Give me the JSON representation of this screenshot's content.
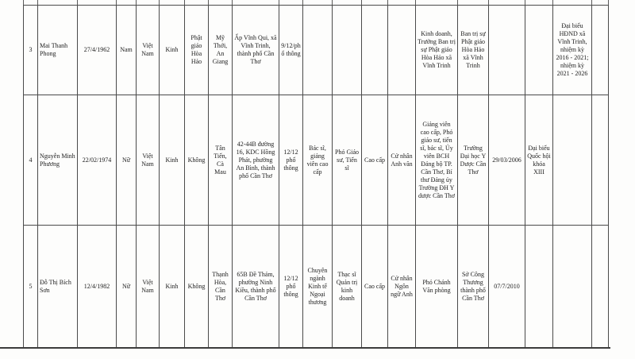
{
  "document": {
    "kind": "scanned candidate biography table",
    "table": {
      "rows": [
        {
          "cells": [
            "3",
            "Mai Thanh Phong",
            "27/4/1962",
            "Nam",
            "Việt Nam",
            "Kinh",
            "Phật giáo Hòa Hảo",
            "Mỹ Thới, An Giang",
            "Ấp Vĩnh Qui, xã Vĩnh Trinh, thành phố Cần Thơ",
            "9/12/phổ thông",
            "",
            "",
            "",
            "",
            "Kinh doanh, Trưởng Ban trị sự Phật giáo Hòa Hảo xã Vĩnh Trinh",
            "Ban trị sự Phật giáo Hòa Hảo xã Vĩnh Trinh",
            "",
            "",
            "Đại biểu HĐND xã Vĩnh Trinh, nhiệm kỳ 2016 - 2021; nhiệm kỳ 2021 - 2026",
            ""
          ]
        },
        {
          "cells": [
            "4",
            "Nguyễn Minh Phương",
            "22/02/1974",
            "Nữ",
            "Việt Nam",
            "Kinh",
            "Không",
            "Tân Tiến, Cà Mau",
            "42-44B đường 16, KDC Hồng Phát, phường An Bình, thành phố Cần Thơ",
            "12/12 phổ thông",
            "Bác sĩ, giảng viên cao cấp",
            "Phó Giáo sư, Tiến sĩ",
            "Cao cấp",
            "Cử nhân Anh văn",
            "Giảng viên cao cấp, Phó giáo sư, tiến sĩ, bác sĩ, Ủy viên BCH Đảng bộ TP. Cần Thơ, Bí thư Đảng ủy Trường ĐH Y dược Cần Thơ",
            "Trường Đại học Y Dược Cần Thơ",
            "29/03/2006",
            "Đại biểu Quốc hội khóa XIII",
            "",
            ""
          ]
        },
        {
          "cells": [
            "5",
            "Đỗ Thị Bích Sơn",
            "12/4/1982",
            "Nữ",
            "Việt Nam",
            "Kinh",
            "Không",
            "Thạnh Hòa, Cần Thơ",
            "65B Đề Thám, phường Ninh Kiều, thành phố Cần Thơ",
            "12/12 phổ thông",
            "Chuyên ngành Kinh tế Ngoại thương",
            "Thạc sĩ Quản trị kinh doanh",
            "Cao cấp",
            "Cử nhân Ngôn ngữ Anh",
            "Phó Chánh Văn phòng",
            "Sở Công Thương thành phố Cần Thơ",
            "07/7/2010",
            "",
            "",
            ""
          ]
        }
      ]
    }
  }
}
